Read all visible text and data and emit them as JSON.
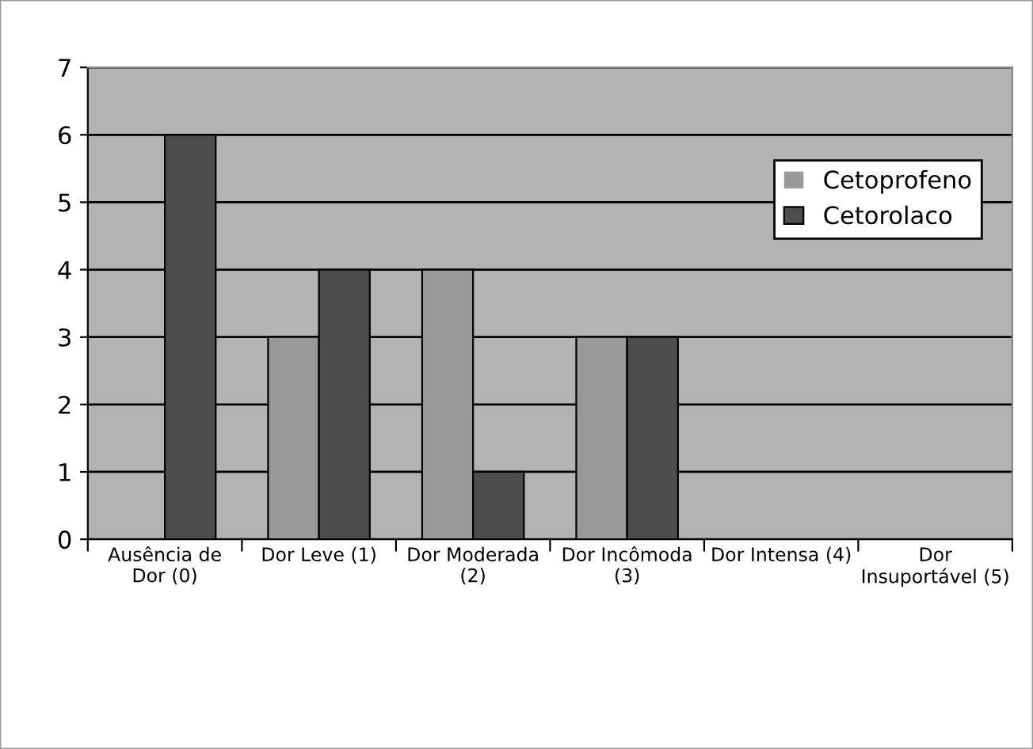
{
  "chart_data": {
    "type": "bar",
    "categories": [
      "Ausência de\nDor (0)",
      "Dor Leve (1)",
      "Dor Moderada\n(2)",
      "Dor Incômoda\n(3)",
      "Dor Intensa (4)",
      "Dor\nInsuportável (5)"
    ],
    "series": [
      {
        "name": "Cetoprofeno",
        "color": "#999999",
        "values": [
          0,
          3,
          4,
          3,
          0,
          0
        ]
      },
      {
        "name": "Cetorolaco",
        "color": "#4d4d4d",
        "values": [
          6,
          4,
          1,
          3,
          0,
          0
        ]
      }
    ],
    "ylim": [
      0,
      7
    ],
    "yticks": [
      0,
      1,
      2,
      3,
      4,
      5,
      6,
      7
    ],
    "grid": "y",
    "legend": "right"
  }
}
